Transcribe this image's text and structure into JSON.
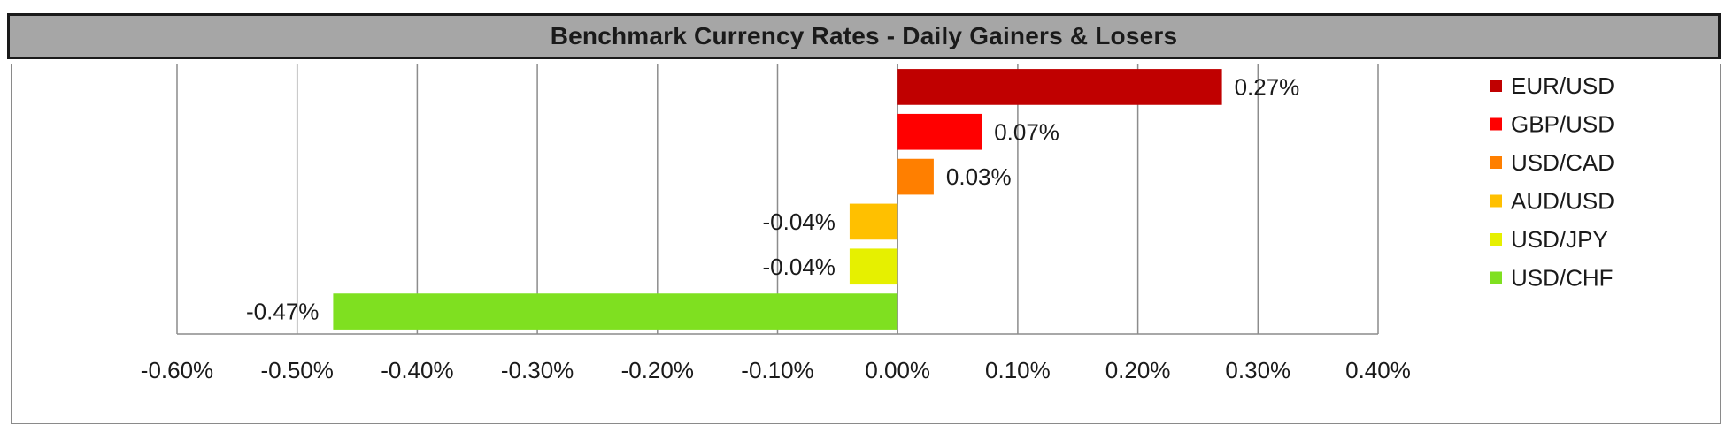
{
  "title": "Benchmark Currency Rates - Daily Gainers & Losers",
  "chart_data": {
    "type": "bar",
    "orientation": "horizontal",
    "title": "Benchmark Currency Rates - Daily Gainers & Losers",
    "xlim": [
      -0.6,
      0.4
    ],
    "x_ticks": [
      -0.6,
      -0.5,
      -0.4,
      -0.3,
      -0.2,
      -0.1,
      0.0,
      0.1,
      0.2,
      0.3,
      0.4
    ],
    "x_tick_labels": [
      "-0.60%",
      "-0.50%",
      "-0.40%",
      "-0.30%",
      "-0.20%",
      "-0.10%",
      "0.00%",
      "0.10%",
      "0.20%",
      "0.30%",
      "0.40%"
    ],
    "grid": "vertical",
    "legend_position": "right",
    "series": [
      {
        "name": "EUR/USD",
        "value": 0.27,
        "label": "0.27%",
        "color": "#c00000"
      },
      {
        "name": "GBP/USD",
        "value": 0.07,
        "label": "0.07%",
        "color": "#ff0000"
      },
      {
        "name": "USD/CAD",
        "value": 0.03,
        "label": "0.03%",
        "color": "#ff7f00"
      },
      {
        "name": "AUD/USD",
        "value": -0.04,
        "label": "-0.04%",
        "color": "#ffc000"
      },
      {
        "name": "USD/JPY",
        "value": -0.04,
        "label": "-0.04%",
        "color": "#e6f000"
      },
      {
        "name": "USD/CHF",
        "value": -0.47,
        "label": "-0.47%",
        "color": "#7fe020"
      }
    ]
  }
}
